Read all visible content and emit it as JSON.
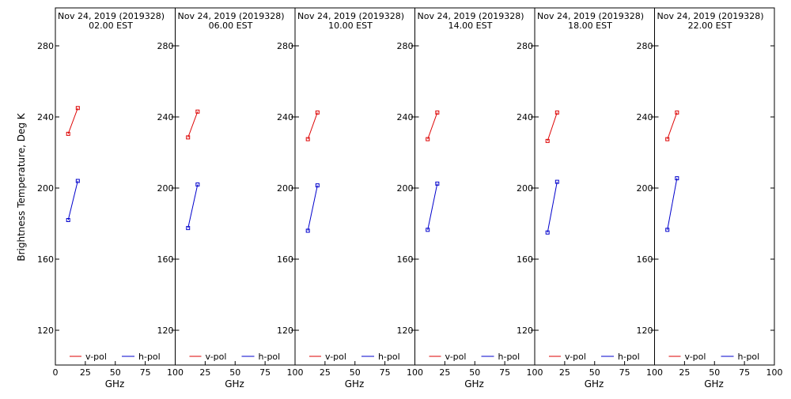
{
  "chart_data": {
    "type": "line",
    "ylabel": "Brightness Temperature, Deg K",
    "xlabel": "GHz",
    "xlim": [
      0,
      100
    ],
    "ylim": [
      100,
      295
    ],
    "x_ticks": [
      0,
      25,
      50,
      75,
      100
    ],
    "y_ticks": [
      120,
      160,
      200,
      240,
      280
    ],
    "legend": {
      "placement": "bottom",
      "entries": [
        "v-pol",
        "h-pol"
      ]
    },
    "grid": false,
    "colors": {
      "v-pol": "#dd0000",
      "h-pol": "#0000cc"
    },
    "panels": [
      {
        "title_line1": "Nov 24, 2019 (2019328)",
        "title_line2": "02.00 EST",
        "series": [
          {
            "name": "v-pol",
            "x": [
              10.7,
              18.7
            ],
            "y": [
              230.5,
              245
            ]
          },
          {
            "name": "h-pol",
            "x": [
              10.7,
              18.7
            ],
            "y": [
              182,
              204
            ]
          }
        ]
      },
      {
        "title_line1": "Nov 24, 2019 (2019328)",
        "title_line2": "06.00 EST",
        "series": [
          {
            "name": "v-pol",
            "x": [
              10.7,
              18.7
            ],
            "y": [
              228.5,
              243
            ]
          },
          {
            "name": "h-pol",
            "x": [
              10.7,
              18.7
            ],
            "y": [
              177.5,
              202
            ]
          }
        ]
      },
      {
        "title_line1": "Nov 24, 2019 (2019328)",
        "title_line2": "10.00 EST",
        "series": [
          {
            "name": "v-pol",
            "x": [
              10.7,
              18.7
            ],
            "y": [
              227.5,
              242.5
            ]
          },
          {
            "name": "h-pol",
            "x": [
              10.7,
              18.7
            ],
            "y": [
              176,
              201.5
            ]
          }
        ]
      },
      {
        "title_line1": "Nov 24, 2019 (2019328)",
        "title_line2": "14.00 EST",
        "series": [
          {
            "name": "v-pol",
            "x": [
              10.7,
              18.7
            ],
            "y": [
              227.5,
              242.5
            ]
          },
          {
            "name": "h-pol",
            "x": [
              10.7,
              18.7
            ],
            "y": [
              176.5,
              202.5
            ]
          }
        ]
      },
      {
        "title_line1": "Nov 24, 2019 (2019328)",
        "title_line2": "18.00 EST",
        "series": [
          {
            "name": "v-pol",
            "x": [
              10.7,
              18.7
            ],
            "y": [
              226.5,
              242.5
            ]
          },
          {
            "name": "h-pol",
            "x": [
              10.7,
              18.7
            ],
            "y": [
              175,
              203.5
            ]
          }
        ]
      },
      {
        "title_line1": "Nov 24, 2019 (2019328)",
        "title_line2": "22.00 EST",
        "series": [
          {
            "name": "v-pol",
            "x": [
              10.7,
              18.7
            ],
            "y": [
              227.5,
              242.5
            ]
          },
          {
            "name": "h-pol",
            "x": [
              10.7,
              18.7
            ],
            "y": [
              176.5,
              205.5
            ]
          }
        ]
      }
    ]
  }
}
